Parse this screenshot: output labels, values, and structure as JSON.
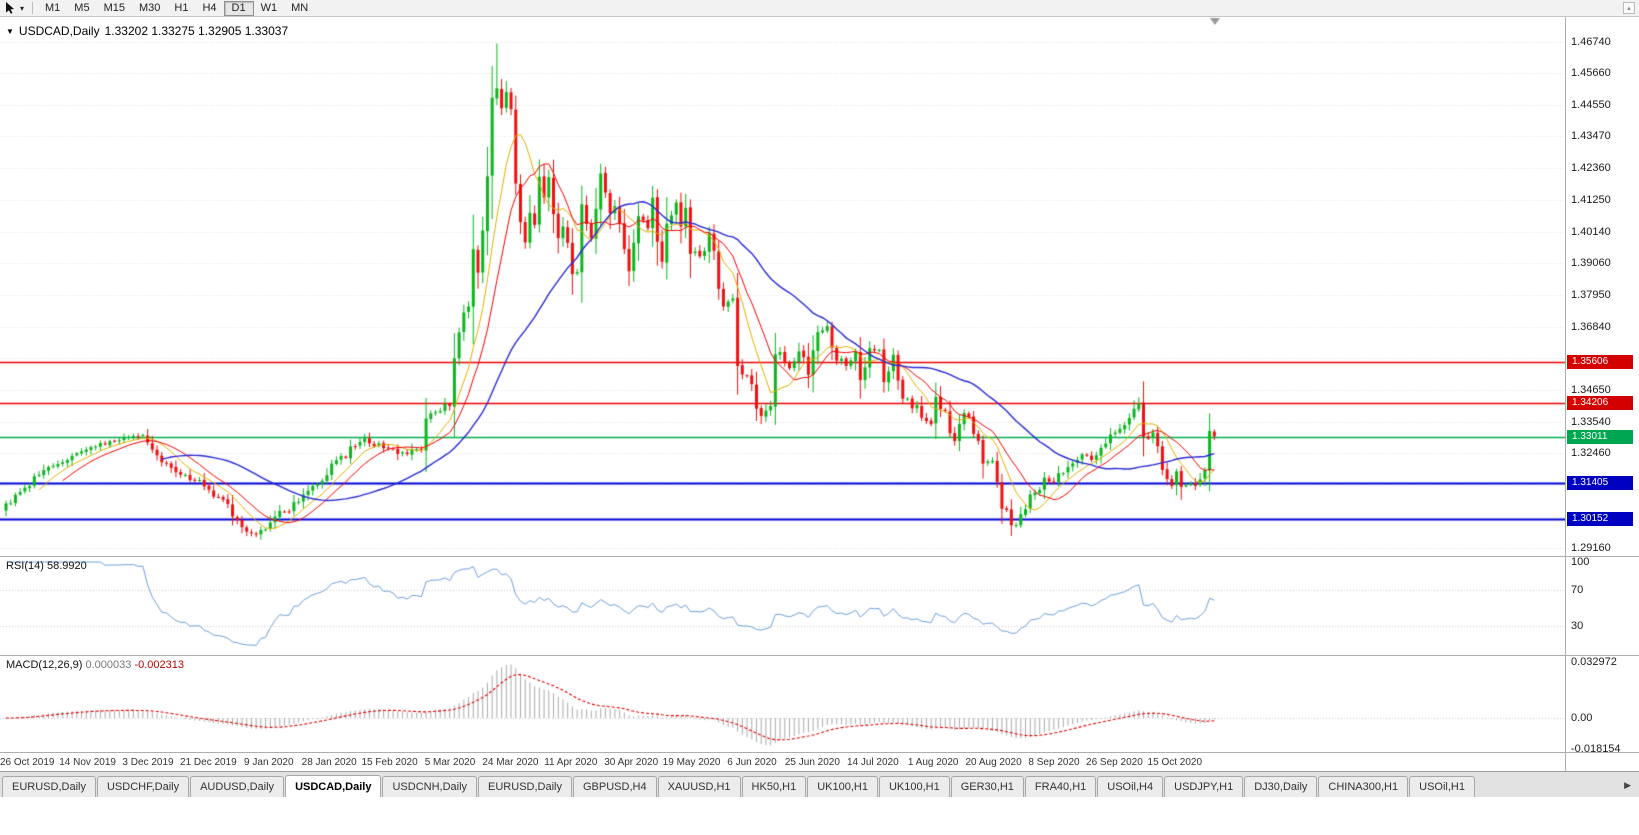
{
  "toolbar": {
    "timeframes": [
      "M1",
      "M5",
      "M15",
      "M30",
      "H1",
      "H4",
      "D1",
      "W1",
      "MN"
    ],
    "active_timeframe": "D1",
    "cursor_dropdown_icon": "▾",
    "corner_button_icon": "▴"
  },
  "chart": {
    "expander_icon": "▼",
    "symbol_title": "USDCAD,Daily",
    "ohlc_text": "1.33202 1.33275 1.32905 1.33037"
  },
  "indicators": {
    "rsi": {
      "label": "RSI(14)",
      "value": "58.9920",
      "axis_labels": [
        100,
        70,
        30
      ]
    },
    "macd": {
      "label": "MACD(12,26,9)",
      "value_main": "0.000033",
      "value_signal": "-0.002313",
      "axis_labels": [
        "0.032972",
        "0.00",
        "-0.018154"
      ]
    }
  },
  "price_axis": {
    "ticks": [
      "1.46740",
      "1.45660",
      "1.44550",
      "1.43470",
      "1.42360",
      "1.41250",
      "1.40140",
      "1.39060",
      "1.37950",
      "1.36840",
      "1.34650",
      "1.33540",
      "1.32460",
      "1.29160"
    ],
    "badges": [
      {
        "text": "1.35606",
        "price": 1.35606,
        "color": "#d40000"
      },
      {
        "text": "1.34206",
        "price": 1.34206,
        "color": "#d40000"
      },
      {
        "text": "1.33011",
        "price": 1.33011,
        "color": "#00a651"
      },
      {
        "text": "1.31405",
        "price": 1.31405,
        "color": "#0000c0"
      },
      {
        "text": "1.30152",
        "price": 1.30152,
        "color": "#0000c0"
      }
    ]
  },
  "date_axis": {
    "labels": [
      "26 Oct 2019",
      "14 Nov 2019",
      "3 Dec 2019",
      "21 Dec 2019",
      "9 Jan 2020",
      "28 Jan 2020",
      "15 Feb 2020",
      "5 Mar 2020",
      "24 Mar 2020",
      "11 Apr 2020",
      "30 Apr 2020",
      "19 May 2020",
      "6 Jun 2020",
      "25 Jun 2020",
      "14 Jul 2020",
      "1 Aug 2020",
      "20 Aug 2020",
      "8 Sep 2020",
      "26 Sep 2020",
      "15 Oct 2020"
    ]
  },
  "tabs": {
    "items": [
      "EURUSD,Daily",
      "USDCHF,Daily",
      "AUDUSD,Daily",
      "USDCAD,Daily",
      "USDCNH,Daily",
      "EURUSD,Daily",
      "GBPUSD,H4",
      "XAUUSD,H1",
      "HK50,H1",
      "UK100,H1",
      "UK100,H1",
      "GER30,H1",
      "FRA40,H1",
      "USOil,H4",
      "USDJPY,H1",
      "DJ30,Daily",
      "CHINA300,H1",
      "USOil,H1"
    ],
    "active_index": 3,
    "scroll_icon": "▶"
  },
  "colors": {
    "background": "#ffffff",
    "grid": "#e2e2e2",
    "bull": "#0cb51f",
    "bear": "#ed1111",
    "rsi_line": "#6f9fd8",
    "macd_hist": "#aaaaaa",
    "macd_signal": "#e60000"
  },
  "chart_data": {
    "type": "candlestick",
    "symbol": "USDCAD",
    "timeframe": "Daily",
    "title": "USDCAD,Daily",
    "bars_count": 257,
    "price_range_top": 1.476,
    "price_range_bottom": 1.2888,
    "last_bar": {
      "open": 1.33202,
      "high": 1.33275,
      "low": 1.32905,
      "close": 1.33037
    },
    "peak_high": 1.4668,
    "wick_overrides": [
      [
        103,
        1.459
      ],
      [
        104,
        1.4668
      ]
    ],
    "grid_prices": [
      1.4674,
      1.4566,
      1.4455,
      1.4347,
      1.4236,
      1.4125,
      1.4014,
      1.3906,
      1.3795,
      1.3684,
      1.3576,
      1.3465,
      1.3354,
      1.3246,
      1.3135,
      1.3024,
      1.2916
    ],
    "horizontal_lines": [
      {
        "price": 1.35606,
        "color": "#ee0000",
        "width": 1.4
      },
      {
        "price": 1.34206,
        "color": "#ee0000",
        "width": 1.4
      },
      {
        "price": 1.33011,
        "color": "#00b050",
        "width": 1.4
      },
      {
        "price": 1.31405,
        "color": "#0000d8",
        "width": 2
      },
      {
        "price": 1.30152,
        "color": "#0000d8",
        "width": 2
      }
    ],
    "moving_averages": [
      {
        "period": 8,
        "color": "#e0b000",
        "width": 1
      },
      {
        "period": 13,
        "color": "#f20000",
        "width": 1
      },
      {
        "period": 34,
        "color": "#2b2bd4",
        "width": 1.4
      }
    ],
    "rsi": {
      "period": 14,
      "current": 58.992,
      "levels": [
        70,
        30
      ],
      "line_color": "#6f9fd8"
    },
    "macd": {
      "fast": 12,
      "slow": 26,
      "signal_period": 9,
      "current_main": 3.3e-05,
      "current_signal": -0.002313,
      "axis_max": 0.032972,
      "axis_min": -0.018154,
      "hist_color": "#aaaaaa",
      "signal_color": "#e60000"
    },
    "close_anchors": [
      [
        0,
        1.307
      ],
      [
        3,
        1.3105
      ],
      [
        6,
        1.316
      ],
      [
        9,
        1.3195
      ],
      [
        12,
        1.322
      ],
      [
        15,
        1.3235
      ],
      [
        18,
        1.3262
      ],
      [
        21,
        1.328
      ],
      [
        24,
        1.3288
      ],
      [
        27,
        1.33
      ],
      [
        29,
        1.3316
      ],
      [
        31,
        1.3252
      ],
      [
        33,
        1.3218
      ],
      [
        36,
        1.3178
      ],
      [
        39,
        1.316
      ],
      [
        42,
        1.3138
      ],
      [
        45,
        1.3092
      ],
      [
        48,
        1.3038
      ],
      [
        50,
        1.2992
      ],
      [
        52,
        1.2962
      ],
      [
        54,
        1.2976
      ],
      [
        56,
        1.3002
      ],
      [
        58,
        1.3032
      ],
      [
        61,
        1.3062
      ],
      [
        64,
        1.3105
      ],
      [
        67,
        1.316
      ],
      [
        70,
        1.3212
      ],
      [
        73,
        1.3256
      ],
      [
        76,
        1.3292
      ],
      [
        79,
        1.3272
      ],
      [
        82,
        1.3252
      ],
      [
        85,
        1.3236
      ],
      [
        88,
        1.3272
      ],
      [
        90,
        1.3396
      ],
      [
        92,
        1.3382
      ],
      [
        94,
        1.3422
      ],
      [
        96,
        1.3692
      ],
      [
        97,
        1.3732
      ],
      [
        98,
        1.3766
      ],
      [
        99,
        1.3936
      ],
      [
        100,
        1.3862
      ],
      [
        101,
        1.4002
      ],
      [
        102,
        1.4232
      ],
      [
        103,
        1.4496
      ],
      [
        104,
        1.4512
      ],
      [
        105,
        1.4432
      ],
      [
        106,
        1.4488
      ],
      [
        107,
        1.4468
      ],
      [
        108,
        1.4182
      ],
      [
        109,
        1.4062
      ],
      [
        110,
        1.3988
      ],
      [
        111,
        1.4102
      ],
      [
        112,
        1.4062
      ],
      [
        113,
        1.4186
      ],
      [
        114,
        1.4142
      ],
      [
        115,
        1.4216
      ],
      [
        116,
        1.4092
      ],
      [
        117,
        1.4016
      ],
      [
        118,
        1.4012
      ],
      [
        119,
        1.3956
      ],
      [
        120,
        1.3872
      ],
      [
        121,
        1.3896
      ],
      [
        122,
        1.4092
      ],
      [
        123,
        1.4046
      ],
      [
        124,
        1.4002
      ],
      [
        125,
        1.4132
      ],
      [
        126,
        1.4216
      ],
      [
        127,
        1.4162
      ],
      [
        128,
        1.4066
      ],
      [
        129,
        1.4096
      ],
      [
        130,
        1.4032
      ],
      [
        131,
        1.3962
      ],
      [
        132,
        1.3882
      ],
      [
        133,
        1.3946
      ],
      [
        134,
        1.4086
      ],
      [
        135,
        1.4072
      ],
      [
        136,
        1.4026
      ],
      [
        137,
        1.4146
      ],
      [
        138,
        1.3976
      ],
      [
        139,
        1.3926
      ],
      [
        140,
        1.4022
      ],
      [
        141,
        1.4096
      ],
      [
        142,
        1.4112
      ],
      [
        143,
        1.4032
      ],
      [
        144,
        1.4116
      ],
      [
        145,
        1.3952
      ],
      [
        147,
        1.3932
      ],
      [
        149,
        1.4002
      ],
      [
        150,
        1.3986
      ],
      [
        151,
        1.3792
      ],
      [
        152,
        1.3752
      ],
      [
        154,
        1.3786
      ],
      [
        155,
        1.3566
      ],
      [
        156,
        1.3522
      ],
      [
        158,
        1.3496
      ],
      [
        159,
        1.3422
      ],
      [
        160,
        1.3376
      ],
      [
        162,
        1.3412
      ],
      [
        163,
        1.3626
      ],
      [
        164,
        1.3606
      ],
      [
        166,
        1.3546
      ],
      [
        168,
        1.3602
      ],
      [
        170,
        1.3512
      ],
      [
        172,
        1.3642
      ],
      [
        174,
        1.3686
      ],
      [
        176,
        1.3576
      ],
      [
        178,
        1.3552
      ],
      [
        180,
        1.3612
      ],
      [
        181,
        1.3512
      ],
      [
        183,
        1.3596
      ],
      [
        185,
        1.3606
      ],
      [
        186,
        1.3512
      ],
      [
        188,
        1.3582
      ],
      [
        190,
        1.3456
      ],
      [
        192,
        1.3416
      ],
      [
        194,
        1.3376
      ],
      [
        196,
        1.3342
      ],
      [
        197,
        1.3452
      ],
      [
        198,
        1.3412
      ],
      [
        200,
        1.3326
      ],
      [
        201,
        1.3282
      ],
      [
        203,
        1.3386
      ],
      [
        205,
        1.3306
      ],
      [
        207,
        1.3222
      ],
      [
        209,
        1.3196
      ],
      [
        211,
        1.3052
      ],
      [
        213,
        1.3006
      ],
      [
        214,
        1.2996
      ],
      [
        216,
        1.3062
      ],
      [
        218,
        1.3112
      ],
      [
        220,
        1.3162
      ],
      [
        222,
        1.3146
      ],
      [
        224,
        1.3192
      ],
      [
        226,
        1.3222
      ],
      [
        228,
        1.3242
      ],
      [
        230,
        1.3216
      ],
      [
        232,
        1.3272
      ],
      [
        234,
        1.3306
      ],
      [
        236,
        1.3332
      ],
      [
        238,
        1.3382
      ],
      [
        240,
        1.3406
      ],
      [
        241,
        1.3332
      ],
      [
        242,
        1.3292
      ],
      [
        243,
        1.3322
      ],
      [
        244,
        1.3256
      ],
      [
        245,
        1.3192
      ],
      [
        246,
        1.3146
      ],
      [
        247,
        1.3126
      ],
      [
        248,
        1.3182
      ],
      [
        249,
        1.3126
      ],
      [
        250,
        1.3142
      ],
      [
        251,
        1.3136
      ],
      [
        252,
        1.3122
      ],
      [
        253,
        1.3162
      ],
      [
        254,
        1.3186
      ],
      [
        255,
        1.3322
      ],
      [
        256,
        1.33037
      ]
    ]
  }
}
